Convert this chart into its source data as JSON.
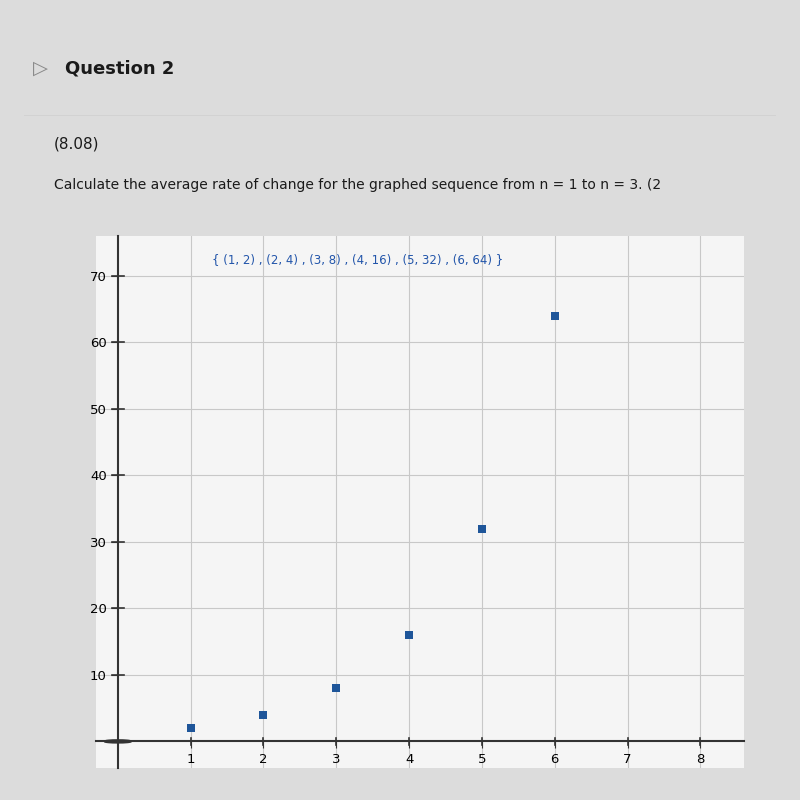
{
  "title_question": "Question 2",
  "subtitle": "(8.08)",
  "instruction": "Calculate the average rate of change for the graphed sequence from n = 1 to n = 3. (2",
  "sequence_label": "{ (1, 2) , (2, 4) , (3, 8) , (4, 16) , (5, 32) , (6, 64) }",
  "points": [
    [
      1,
      2
    ],
    [
      2,
      4
    ],
    [
      3,
      8
    ],
    [
      4,
      16
    ],
    [
      5,
      32
    ],
    [
      6,
      64
    ]
  ],
  "point_color": "#1e5599",
  "marker_size": 6,
  "xlim": [
    -0.3,
    8.6
  ],
  "ylim": [
    -4,
    76
  ],
  "xticks": [
    1,
    2,
    3,
    4,
    5,
    6,
    7,
    8
  ],
  "yticks": [
    10,
    20,
    30,
    40,
    50,
    60,
    70
  ],
  "grid_color": "#c8c8c8",
  "bg_color": "#dcdcdc",
  "panel_bg": "#e8e8e8",
  "white_panel": "#f5f5f5",
  "label_color": "#2255aa",
  "text_color": "#1a1a1a",
  "header_bg": "#d8d8d8",
  "fig_width": 8.0,
  "fig_height": 8.0
}
